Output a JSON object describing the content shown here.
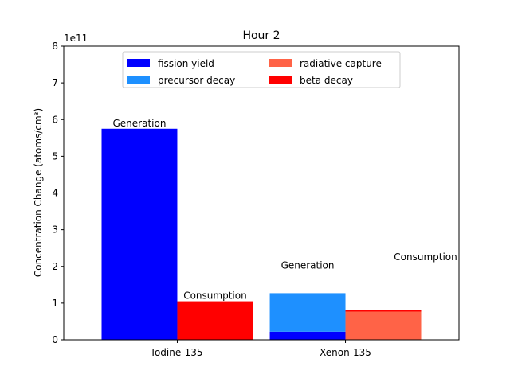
{
  "chart_data": {
    "type": "bar",
    "title": "Hour 2",
    "ylabel": "Concentration Change (atoms/cm³)",
    "xlabel": "",
    "offset_label": "1e11",
    "ylim": [
      0,
      8
    ],
    "yticks": [
      0,
      1,
      2,
      3,
      4,
      5,
      6,
      7,
      8
    ],
    "y_scale_multiplier": 100000000000.0,
    "categories": [
      "Iodine-135",
      "Xenon-135"
    ],
    "legend": {
      "placement": "upper-center",
      "columns": 2,
      "entries": [
        {
          "name": "fission yield",
          "color": "#0000ff"
        },
        {
          "name": "precursor decay",
          "color": "#1e90ff"
        },
        {
          "name": "radiative capture",
          "color": "#ff6347"
        },
        {
          "name": "beta decay",
          "color": "#ff0000"
        }
      ]
    },
    "groups": [
      {
        "category": "Iodine-135",
        "bars": [
          {
            "label": "Generation",
            "segments": [
              {
                "name": "fission yield",
                "value": 5.75,
                "color": "#0000ff"
              }
            ]
          },
          {
            "label": "Consumption",
            "segments": [
              {
                "name": "beta decay",
                "value": 1.05,
                "color": "#ff0000"
              }
            ]
          }
        ]
      },
      {
        "category": "Xenon-135",
        "bars": [
          {
            "label": "Generation",
            "segments": [
              {
                "name": "fission yield",
                "value": 0.22,
                "color": "#0000ff"
              },
              {
                "name": "precursor decay",
                "value": 1.05,
                "color": "#1e90ff"
              }
            ]
          },
          {
            "label": "Consumption",
            "segments": [
              {
                "name": "radiative capture",
                "value": 0.77,
                "color": "#ff6347"
              },
              {
                "name": "beta decay",
                "value": 0.05,
                "color": "#ff0000"
              }
            ]
          }
        ]
      }
    ]
  }
}
